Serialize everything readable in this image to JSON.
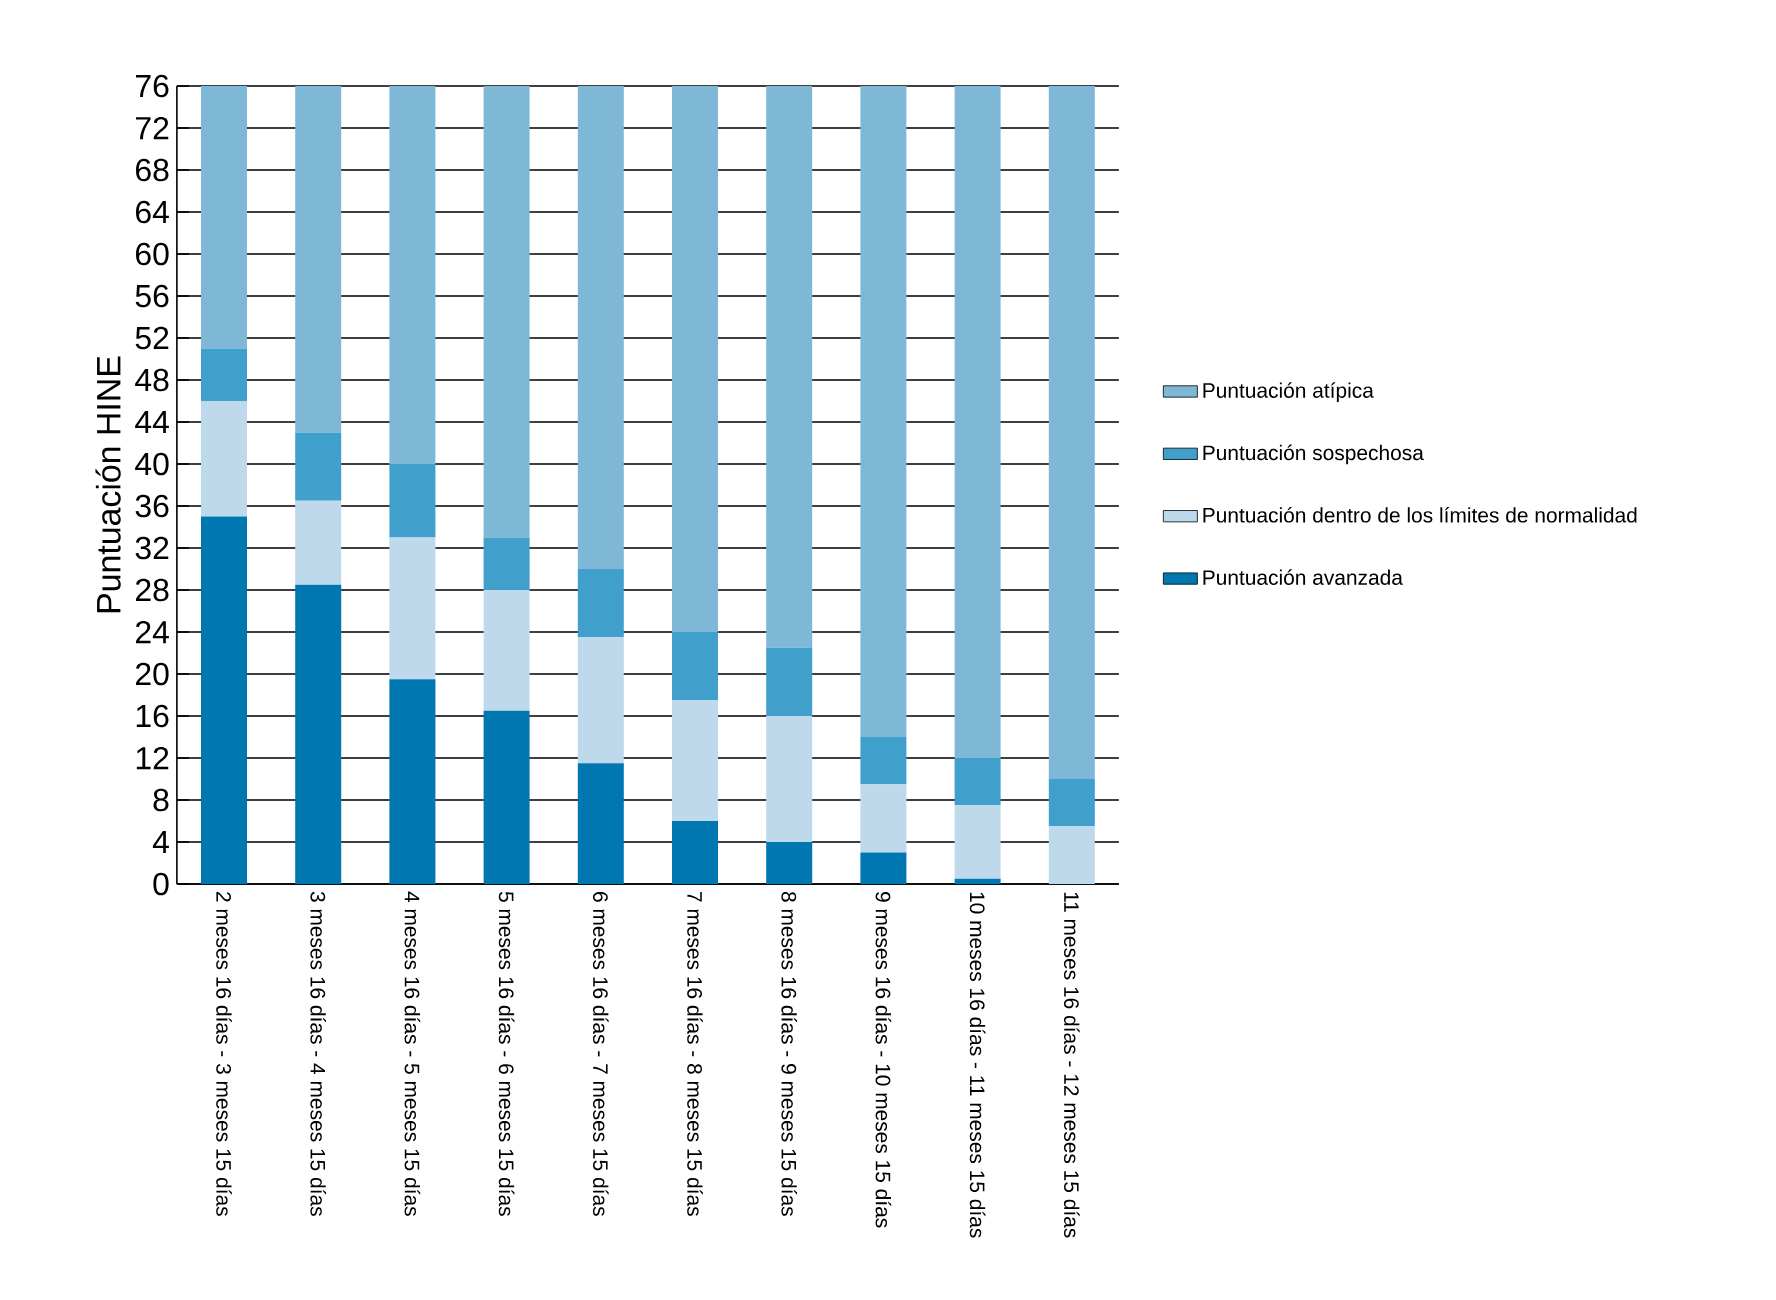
{
  "chart_data": {
    "type": "bar",
    "stacked": true,
    "ylabel": "Puntuación HINE",
    "categories": [
      "2 meses 16 días - 3 meses 15 días",
      "3 meses 16 días - 4 meses 15 días",
      "4 meses 16 días - 5 meses 15 días",
      "5 meses 16 días - 6 meses 15 días",
      "6 meses 16 días - 7 meses 15 días",
      "7 meses 16 días - 8 meses 15 días",
      "8 meses 16 días - 9 meses 15 días",
      "9 meses 16 días - 10 meses 15 días",
      "10 meses 16 días - 11 meses 15 días",
      "11 meses 16 días - 12 meses 15 días"
    ],
    "series": [
      {
        "name": "Puntuación avanzada",
        "color": "#0077b0",
        "values": [
          35,
          28.5,
          19.5,
          16.5,
          11.5,
          6,
          4,
          3,
          0.5,
          0
        ]
      },
      {
        "name": "Puntuación dentro de los límites de normalidad",
        "color": "#bdd9eb",
        "values": [
          11,
          8,
          13.5,
          11.5,
          12,
          11.5,
          12,
          6.5,
          7,
          5.5
        ]
      },
      {
        "name": "Puntuación sospechosa",
        "color": "#419fcb",
        "values": [
          5,
          6.5,
          7,
          5,
          6.5,
          6.5,
          6.5,
          4.5,
          4.5,
          4.5
        ]
      },
      {
        "name": "Puntuación atípica",
        "color": "#7fb7d7",
        "values": [
          25,
          33,
          36,
          43,
          46,
          52,
          53.5,
          62,
          64,
          66
        ]
      }
    ],
    "ylim": [
      0,
      76
    ],
    "yticks": [
      0,
      4,
      8,
      12,
      16,
      20,
      24,
      28,
      32,
      36,
      40,
      44,
      48,
      52,
      56,
      60,
      64,
      68,
      72,
      76
    ],
    "grid": "y",
    "legend": "right"
  }
}
